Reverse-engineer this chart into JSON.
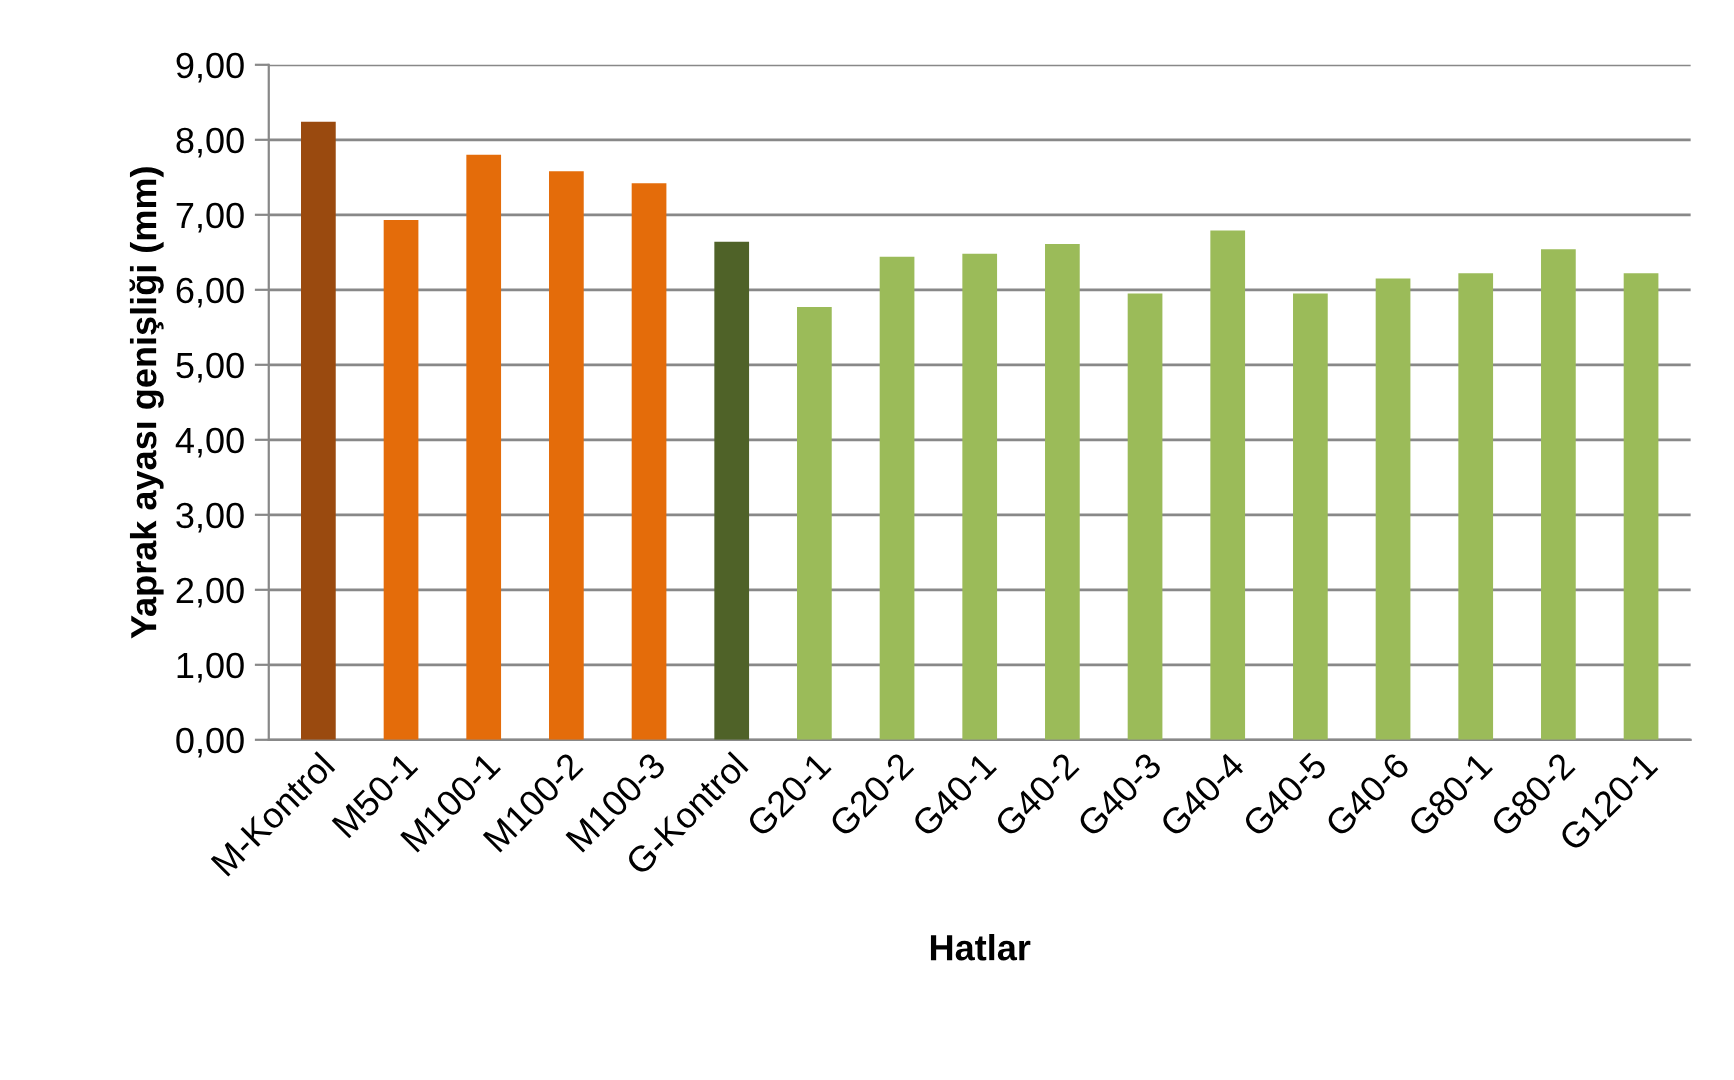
{
  "chart_data": {
    "type": "bar",
    "xlabel": "Hatlar",
    "ylabel": "Yaprak ayası genişliği (mm)",
    "categories": [
      "M-Kontrol",
      "M50-1",
      "M100-1",
      "M100-2",
      "M100-3",
      "G-Kontrol",
      "G20-1",
      "G20-2",
      "G40-1",
      "G40-2",
      "G40-3",
      "G40-4",
      "G40-5",
      "G40-6",
      "G80-1",
      "G80-2",
      "G120-1"
    ],
    "values": [
      8.24,
      6.93,
      7.8,
      7.58,
      7.42,
      6.64,
      5.77,
      6.44,
      6.48,
      6.61,
      5.95,
      6.79,
      5.95,
      6.15,
      6.22,
      6.54,
      6.22
    ],
    "colors": [
      "#9a4a0f",
      "#e46c0a",
      "#e46c0a",
      "#e46c0a",
      "#e46c0a",
      "#4f6228",
      "#9bbb59",
      "#9bbb59",
      "#9bbb59",
      "#9bbb59",
      "#9bbb59",
      "#9bbb59",
      "#9bbb59",
      "#9bbb59",
      "#9bbb59",
      "#9bbb59",
      "#9bbb59"
    ],
    "ylim": [
      0,
      9
    ],
    "yticks": [
      {
        "value": 0,
        "label": "0,00"
      },
      {
        "value": 1,
        "label": "1,00"
      },
      {
        "value": 2,
        "label": "2,00"
      },
      {
        "value": 3,
        "label": "3,00"
      },
      {
        "value": 4,
        "label": "4,00"
      },
      {
        "value": 5,
        "label": "5,00"
      },
      {
        "value": 6,
        "label": "6,00"
      },
      {
        "value": 7,
        "label": "7,00"
      },
      {
        "value": 8,
        "label": "8,00"
      },
      {
        "value": 9,
        "label": "9,00"
      }
    ],
    "grid": "y"
  }
}
